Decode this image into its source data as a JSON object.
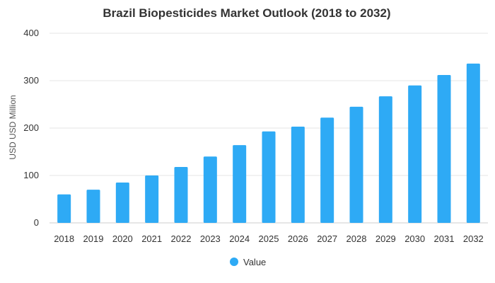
{
  "chart_data": {
    "type": "bar",
    "title": "Brazil Biopesticides Market Outlook (2018 to 2032)",
    "xlabel": "",
    "ylabel": "USD USD Million",
    "categories": [
      "2018",
      "2019",
      "2020",
      "2021",
      "2022",
      "2023",
      "2024",
      "2025",
      "2026",
      "2027",
      "2028",
      "2029",
      "2030",
      "2031",
      "2032"
    ],
    "series": [
      {
        "name": "Value",
        "values": [
          60,
          70,
          85,
          100,
          118,
          140,
          164,
          193,
          203,
          222,
          245,
          267,
          290,
          312,
          336
        ],
        "color": "#2eaaf5"
      }
    ],
    "ylim": [
      0,
      400
    ],
    "yticks": [
      0,
      100,
      200,
      300,
      400
    ],
    "grid": true,
    "legend_position": "bottom"
  }
}
